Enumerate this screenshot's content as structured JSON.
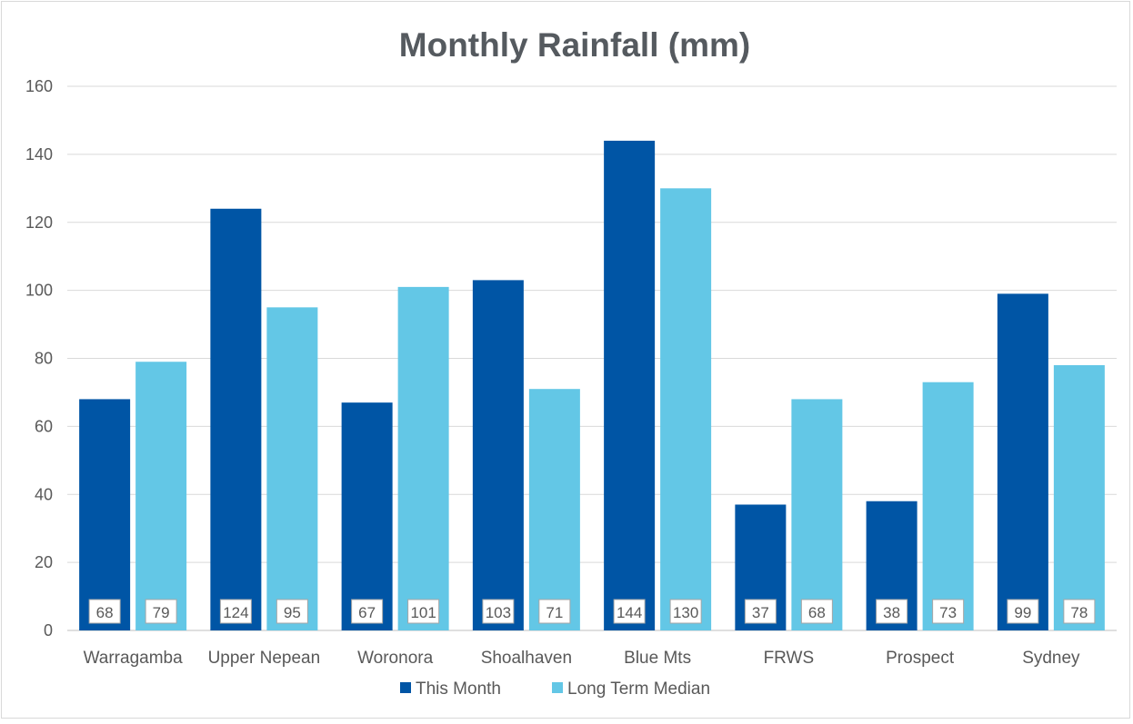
{
  "chart_data": {
    "type": "bar",
    "title": "Monthly Rainfall (mm)",
    "xlabel": "",
    "ylabel": "",
    "categories": [
      "Warragamba",
      "Upper Nepean",
      "Woronora",
      "Shoalhaven",
      "Blue Mts",
      "FRWS",
      "Prospect",
      "Sydney"
    ],
    "series": [
      {
        "name": "This Month",
        "color": "#0055a5",
        "values": [
          68,
          124,
          67,
          103,
          144,
          37,
          38,
          99
        ]
      },
      {
        "name": "Long Term Median",
        "color": "#63c7e6",
        "values": [
          79,
          95,
          101,
          71,
          130,
          68,
          73,
          78
        ]
      }
    ],
    "ylim": [
      0,
      160
    ],
    "yticks": [
      0,
      20,
      40,
      60,
      80,
      100,
      120,
      140,
      160
    ],
    "grid": true,
    "legend_position": "bottom",
    "data_labels": true
  }
}
